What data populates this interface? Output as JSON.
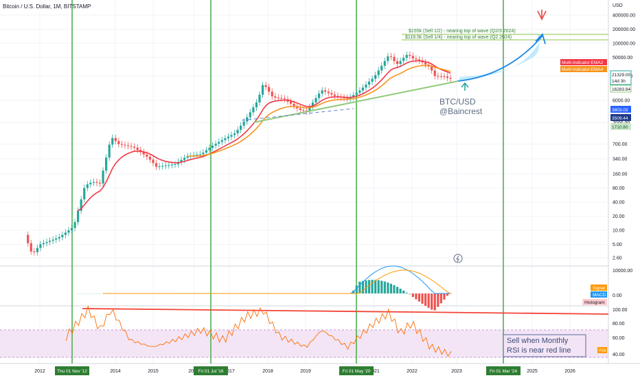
{
  "header": {
    "title": "Bitcoin / U.S. Dollar, 1M, BITSTAMP"
  },
  "colors": {
    "up": "#26a69a",
    "down": "#ef5350",
    "ema_fast": "#f23645",
    "ema_slow": "#f7931a",
    "vline": "#4caf50",
    "trend": "#8fca7a",
    "rsi_band": "#f3e5f5",
    "rsi_line": "#ff6d00",
    "redline": "#f44336",
    "arrow": "#1e88e5",
    "macd": "#2196f3",
    "signal": "#ff9800"
  },
  "chart_data": [
    {
      "type": "candlestick",
      "title": "Bitcoin / U.S. Dollar, 1M, BITSTAMP",
      "y_scale": "log",
      "ylim": [
        1.5,
        700000
      ],
      "y_axis_label": "USD",
      "y_ticks": [
        "400000.00",
        "200000.00",
        "100000.00",
        "50000.00",
        "20000.00",
        "6000.00",
        "2000.00",
        "700.00",
        "340.00",
        "160.00",
        "80.00",
        "40.00",
        "20.00",
        "10.00",
        "5.00",
        "2.60"
      ],
      "x_ticks": [
        "2012",
        "2014",
        "2015",
        "2016",
        "2017",
        "2018",
        "2019",
        "2021",
        "2022",
        "2023",
        "2025",
        "2026"
      ],
      "x_highlight_labels": [
        "Thu 01 Nov '12",
        "Fri 01 Jul '16",
        "Fri 01 May '20",
        "Fri 01 Mar '24"
      ],
      "series": [
        {
          "name": "Multi-Indicator:EMA2"
        },
        {
          "name": "Multi-Indicator:EMA4"
        }
      ],
      "price_labels": [
        "21329.00",
        "14d 3h",
        "16283.84",
        "3803.03",
        "3509.44",
        "1710.80"
      ],
      "annotations": [
        "$155k (Sell 1/2) - nearing top of wave (Q2/3 2024)",
        "$119.5k (Sell 1/4) - nearing top of wave (Q2 2024)",
        "BTC/USD",
        "@Baincrest"
      ]
    },
    {
      "type": "macd",
      "y_ticks": [
        "10000.00",
        "0.00"
      ],
      "legend": [
        "Signal",
        "MACD",
        "Histogram"
      ]
    },
    {
      "type": "rsi",
      "y_ticks": [
        "100.00",
        "80.00",
        "60.00",
        "40.00"
      ],
      "legend": [
        "RSI"
      ],
      "note_line1": "Sell when Monthly",
      "note_line2": "RSI is near red line"
    }
  ]
}
